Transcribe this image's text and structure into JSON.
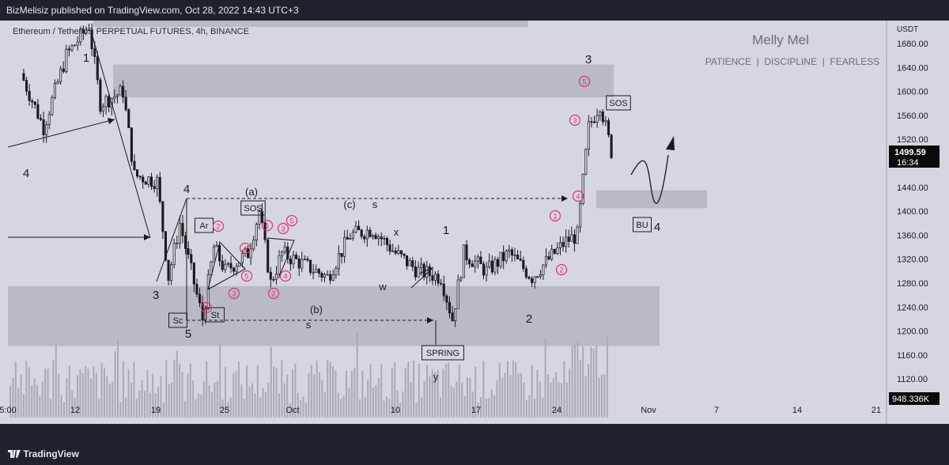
{
  "header": {
    "published": "BizMelisiz published on TradingView.com, Oct 28, 2022 14:43 UTC+3"
  },
  "footer": {
    "brand": "TradingView",
    "brand_icon": "tradingview-logo-icon"
  },
  "symbol": {
    "title": "Ethereum / TetherUS PERPETUAL FUTURES, 4h, BINANCE"
  },
  "watermark": {
    "name": "Melly Mel",
    "motto": "PATIENCE  |  DISCIPLINE  |  FEARLESS"
  },
  "colors": {
    "background": "#d5d6df",
    "zone": "#b9bac3",
    "ink": "#1b1b1f",
    "circle": "#e0336a",
    "price_tag": "#0b0b0b"
  },
  "chart_data": {
    "type": "candlestick",
    "currency": "USDT",
    "y_ticks": [
      1680,
      1640,
      1600,
      1560,
      1520,
      1480,
      1440,
      1400,
      1360,
      1320,
      1280,
      1240,
      1200,
      1160,
      1120
    ],
    "ylim": [
      1080,
      1700
    ],
    "x_ticks": [
      "5:00",
      "12",
      "19",
      "25",
      "Oct",
      "10",
      "17",
      "24",
      "Nov",
      "7",
      "14",
      "21"
    ],
    "last_price": "1499.59",
    "countdown": "16:34",
    "volume_label": "948.336K",
    "close_path": [
      [
        "Sep 6",
        1630
      ],
      [
        "Sep 8",
        1540
      ],
      [
        "Sep 10",
        1660
      ],
      [
        "Sep 12",
        1710
      ],
      [
        "Sep 13",
        1580
      ],
      [
        "Sep 15",
        1600
      ],
      [
        "Sep 16",
        1460
      ],
      [
        "Sep 18",
        1450
      ],
      [
        "Sep 19",
        1290
      ],
      [
        "Sep 20",
        1380
      ],
      [
        "Sep 22",
        1220
      ],
      [
        "Sep 23",
        1340
      ],
      [
        "Sep 24",
        1300
      ],
      [
        "Sep 26",
        1330
      ],
      [
        "Sep 27",
        1400
      ],
      [
        "Sep 28",
        1280
      ],
      [
        "Sep 29",
        1330
      ],
      [
        "Oct 1",
        1310
      ],
      [
        "Oct 3",
        1290
      ],
      [
        "Oct 5",
        1360
      ],
      [
        "Oct 7",
        1370
      ],
      [
        "Oct 9",
        1330
      ],
      [
        "Oct 11",
        1300
      ],
      [
        "Oct 13",
        1290
      ],
      [
        "Oct 14",
        1220
      ],
      [
        "Oct 15",
        1330
      ],
      [
        "Oct 17",
        1300
      ],
      [
        "Oct 19",
        1330
      ],
      [
        "Oct 21",
        1290
      ],
      [
        "Oct 22",
        1310
      ],
      [
        "Oct 24",
        1350
      ],
      [
        "Oct 25",
        1360
      ],
      [
        "Oct 26",
        1540
      ],
      [
        "Oct 27",
        1580
      ],
      [
        "Oct 28",
        1500
      ]
    ],
    "zones": [
      {
        "from": "Sep 15",
        "to": "Oct 27",
        "low": 1590,
        "high": 1645
      },
      {
        "from": "Sep 4",
        "to": "Oct 18",
        "low": 1175,
        "high": 1275
      },
      {
        "from": "Oct 28",
        "to": "Nov 4",
        "low": 1405,
        "high": 1435
      }
    ],
    "wave_labels": [
      {
        "text": "1",
        "date": "Sep 12",
        "price": 1640
      },
      {
        "text": "4",
        "date": "Sep 7",
        "price": 1480
      },
      {
        "text": "3",
        "date": "Sep 19",
        "price": 1250
      },
      {
        "text": "4",
        "date": "Sep 22",
        "price": 1435
      },
      {
        "text": "5",
        "date": "Sep 22",
        "price": 1180
      },
      {
        "text": "(a)",
        "date": "Sep 26",
        "price": 1430
      },
      {
        "text": "(b)",
        "date": "Oct 3",
        "price": 1235
      },
      {
        "text": "(c)",
        "date": "Oct 6",
        "price": 1400
      },
      {
        "text": "x",
        "date": "Oct 9",
        "price": 1360
      },
      {
        "text": "w",
        "date": "Oct 8",
        "price": 1285
      },
      {
        "text": "1",
        "date": "Oct 14",
        "price": 1365
      },
      {
        "text": "2",
        "date": "Oct 21",
        "price": 1225
      },
      {
        "text": "y",
        "date": "Oct 13",
        "price": 1120
      },
      {
        "text": "3",
        "date": "Oct 27",
        "price": 1650
      },
      {
        "text": "4",
        "date": "Oct 31",
        "price": 1370
      },
      {
        "text": "s",
        "date": "Oct 4",
        "price": 1400
      },
      {
        "text": "s",
        "date": "Oct 1",
        "price": 1200
      }
    ],
    "boxed_labels": [
      "SOS",
      "Ar",
      "St",
      "Sc",
      "SPRING",
      "SOS",
      "BU"
    ],
    "circled_numbers": [
      "1",
      "2",
      "3",
      "4",
      "5",
      "1",
      "2",
      "3",
      "4",
      "5",
      "1",
      "2",
      "3",
      "4",
      "5"
    ]
  }
}
